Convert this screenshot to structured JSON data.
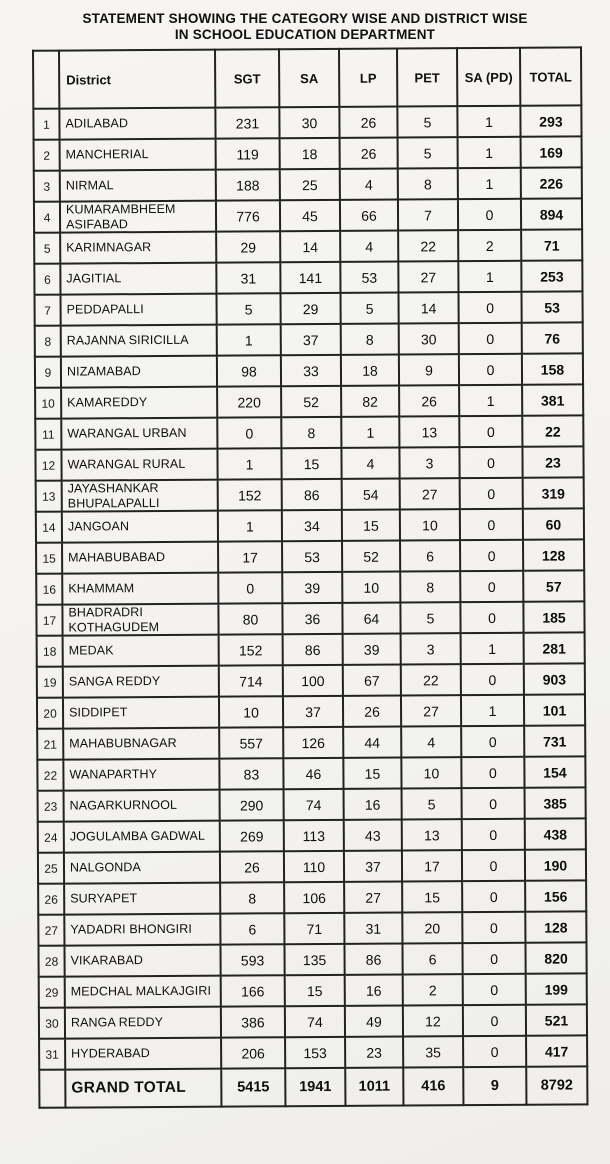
{
  "colors": {
    "paper": "#f5f4f1",
    "ink": "#141414",
    "border": "#222222"
  },
  "page": {
    "title_line1": "STATEMENT SHOWING THE CATEGORY WISE AND DISTRICT WISE",
    "title_line2": "IN SCHOOL EDUCATION DEPARTMENT"
  },
  "table": {
    "columns": {
      "sno": "",
      "district": "District",
      "sgt": "SGT",
      "sa": "SA",
      "lp": "LP",
      "pet": "PET",
      "sa_pd": "SA (PD)",
      "total": "TOTAL"
    },
    "rows": [
      {
        "sno": "1",
        "district": "ADILABAD",
        "values": [
          231,
          30,
          26,
          5,
          1,
          293
        ]
      },
      {
        "sno": "2",
        "district": "MANCHERIAL",
        "values": [
          119,
          18,
          26,
          5,
          1,
          169
        ]
      },
      {
        "sno": "3",
        "district": "NIRMAL",
        "values": [
          188,
          25,
          4,
          8,
          1,
          226
        ]
      },
      {
        "sno": "4",
        "district": "KUMARAMBHEEM ASIFABAD",
        "values": [
          776,
          45,
          66,
          7,
          0,
          894
        ]
      },
      {
        "sno": "5",
        "district": "KARIMNAGAR",
        "values": [
          29,
          14,
          4,
          22,
          2,
          71
        ]
      },
      {
        "sno": "6",
        "district": "JAGITIAL",
        "values": [
          31,
          141,
          53,
          27,
          1,
          253
        ]
      },
      {
        "sno": "7",
        "district": "PEDDAPALLI",
        "values": [
          5,
          29,
          5,
          14,
          0,
          53
        ]
      },
      {
        "sno": "8",
        "district": "RAJANNA SIRICILLA",
        "values": [
          1,
          37,
          8,
          30,
          0,
          76
        ]
      },
      {
        "sno": "9",
        "district": "NIZAMABAD",
        "values": [
          98,
          33,
          18,
          9,
          0,
          158
        ]
      },
      {
        "sno": "10",
        "district": "KAMAREDDY",
        "values": [
          220,
          52,
          82,
          26,
          1,
          381
        ]
      },
      {
        "sno": "11",
        "district": "WARANGAL URBAN",
        "values": [
          0,
          8,
          1,
          13,
          0,
          22
        ]
      },
      {
        "sno": "12",
        "district": "WARANGAL RURAL",
        "values": [
          1,
          15,
          4,
          3,
          0,
          23
        ]
      },
      {
        "sno": "13",
        "district": "JAYASHANKAR BHUPALAPALLI",
        "values": [
          152,
          86,
          54,
          27,
          0,
          319
        ]
      },
      {
        "sno": "14",
        "district": "JANGOAN",
        "values": [
          1,
          34,
          15,
          10,
          0,
          60
        ]
      },
      {
        "sno": "15",
        "district": "MAHABUBABAD",
        "values": [
          17,
          53,
          52,
          6,
          0,
          128
        ]
      },
      {
        "sno": "16",
        "district": "KHAMMAM",
        "values": [
          0,
          39,
          10,
          8,
          0,
          57
        ]
      },
      {
        "sno": "17",
        "district": "BHADRADRI KOTHAGUDEM",
        "values": [
          80,
          36,
          64,
          5,
          0,
          185
        ]
      },
      {
        "sno": "18",
        "district": "MEDAK",
        "values": [
          152,
          86,
          39,
          3,
          1,
          281
        ]
      },
      {
        "sno": "19",
        "district": "SANGA REDDY",
        "values": [
          714,
          100,
          67,
          22,
          0,
          903
        ]
      },
      {
        "sno": "20",
        "district": "SIDDIPET",
        "values": [
          10,
          37,
          26,
          27,
          1,
          101
        ]
      },
      {
        "sno": "21",
        "district": "MAHABUBNAGAR",
        "values": [
          557,
          126,
          44,
          4,
          0,
          731
        ]
      },
      {
        "sno": "22",
        "district": "WANAPARTHY",
        "values": [
          83,
          46,
          15,
          10,
          0,
          154
        ]
      },
      {
        "sno": "23",
        "district": "NAGARKURNOOL",
        "values": [
          290,
          74,
          16,
          5,
          0,
          385
        ]
      },
      {
        "sno": "24",
        "district": "JOGULAMBA GADWAL",
        "values": [
          269,
          113,
          43,
          13,
          0,
          438
        ]
      },
      {
        "sno": "25",
        "district": "NALGONDA",
        "values": [
          26,
          110,
          37,
          17,
          0,
          190
        ]
      },
      {
        "sno": "26",
        "district": "SURYAPET",
        "values": [
          8,
          106,
          27,
          15,
          0,
          156
        ]
      },
      {
        "sno": "27",
        "district": "YADADRI BHONGIRI",
        "values": [
          6,
          71,
          31,
          20,
          0,
          128
        ]
      },
      {
        "sno": "28",
        "district": "VIKARABAD",
        "values": [
          593,
          135,
          86,
          6,
          0,
          820
        ]
      },
      {
        "sno": "29",
        "district": "MEDCHAL MALKAJGIRI",
        "values": [
          166,
          15,
          16,
          2,
          0,
          199
        ]
      },
      {
        "sno": "30",
        "district": "RANGA REDDY",
        "values": [
          386,
          74,
          49,
          12,
          0,
          521
        ]
      },
      {
        "sno": "31",
        "district": "HYDERABAD",
        "values": [
          206,
          153,
          23,
          35,
          0,
          417
        ]
      }
    ],
    "grand_total": {
      "label": "GRAND TOTAL",
      "values": [
        5415,
        1941,
        1011,
        416,
        9,
        8792
      ]
    }
  }
}
